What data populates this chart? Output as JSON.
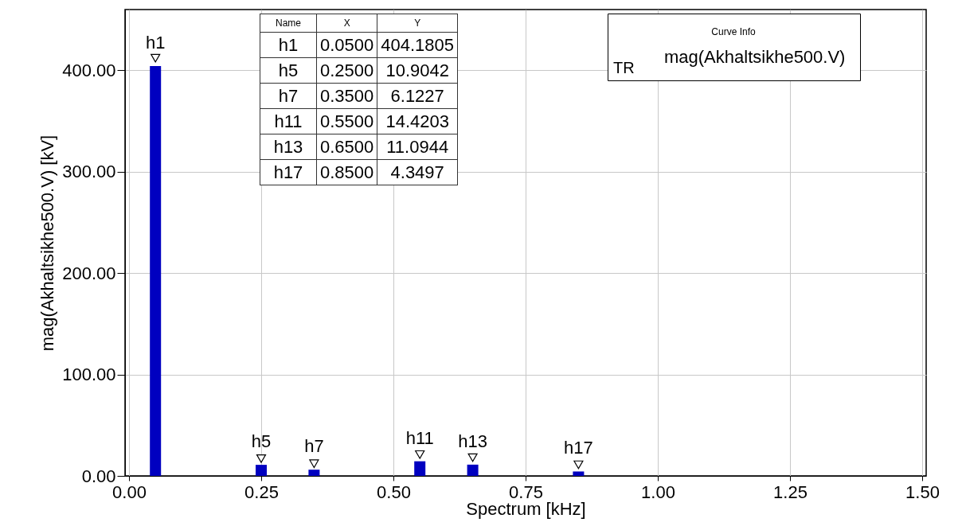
{
  "chart_data": {
    "type": "bar",
    "xlabel": "Spectrum [kHz]",
    "ylabel": "mag(Akhaltsikhe500.V) [kV]",
    "legend_title": "Curve Info",
    "x": [
      0.05,
      0.25,
      0.35,
      0.55,
      0.65,
      0.85
    ],
    "series": [
      {
        "name": "mag(Akhaltsikhe500.V)",
        "color": "#0000c0",
        "values": [
          404.1805,
          10.9042,
          6.1227,
          14.4203,
          11.0944,
          4.3497
        ]
      },
      {
        "type": "scatter",
        "color": "#ffffff",
        "x": [
          0.05,
          0.25,
          0.35,
          0.55,
          0.65,
          0.85
        ],
        "values": [
          412,
          17,
          12,
          21,
          18,
          11
        ]
      }
    ],
    "value_labels": [
      "404.1805",
      "10.9042",
      "6.1227",
      "14.4203",
      "11.0944",
      "4.3497"
    ],
    "xlim": [
      0,
      1.5
    ],
    "xticks": [
      {
        "value": 0,
        "label": "0.00"
      },
      {
        "value": 0.25,
        "label": "0.25"
      },
      {
        "value": 0.5,
        "label": "0.50"
      },
      {
        "value": 0.75,
        "label": "0.75"
      },
      {
        "value": 1,
        "label": "1.00"
      },
      {
        "value": 1.25,
        "label": "1.25"
      },
      {
        "value": 1.5,
        "label": "1.50"
      }
    ],
    "ylim": [
      0,
      460
    ],
    "yticks": [
      {
        "value": 0,
        "label": "0.00"
      },
      {
        "value": 100,
        "label": "100.00"
      },
      {
        "value": 200,
        "label": "200.00"
      },
      {
        "value": 300,
        "label": "300.00"
      },
      {
        "value": 400,
        "label": "400.00"
      }
    ],
    "grid": true,
    "legend": "top right",
    "marker": "triangle",
    "annotations": [
      {
        "text": "h1",
        "x": 0.05,
        "y": 404.1805
      },
      {
        "text": "h5",
        "x": 0.25,
        "y": 10.9042
      },
      {
        "text": "h7",
        "x": 0.35,
        "y": 6.1227
      },
      {
        "text": "h11",
        "x": 0.55,
        "y": 14.4203
      },
      {
        "text": "h13",
        "x": 0.65,
        "y": 11.0944
      },
      {
        "text": "h17",
        "x": 0.85,
        "y": 4.3497
      },
      "Name",
      "X",
      "Y",
      "0.0500",
      "0.2500",
      "0.3500",
      "0.5500",
      "0.6500",
      "0.8500",
      "TR"
    ]
  }
}
